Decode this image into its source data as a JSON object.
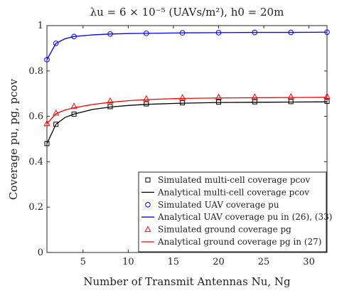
{
  "chart_data": {
    "type": "line",
    "title": "λu = 6 × 10⁻⁵ (UAVs/m²), h0 = 20m",
    "xlabel": "Number of Transmit Antennas Nu, Ng",
    "ylabel": "Coverage pu, pg, pcov",
    "xlim": [
      1,
      32
    ],
    "ylim": [
      0,
      1
    ],
    "xticks": [
      5,
      10,
      15,
      20,
      25,
      30
    ],
    "yticks": [
      0,
      0.2,
      0.4,
      0.6,
      0.8,
      1
    ],
    "xtick_labels": [
      "5",
      "10",
      "15",
      "20",
      "25",
      "30"
    ],
    "ytick_labels": [
      "0",
      "0.2",
      "0.4",
      "0.6",
      "0.8",
      "1"
    ],
    "grid": false,
    "legend_position": "bottom-right",
    "series": [
      {
        "name": "Simulated multi-cell coverage pcov",
        "kind": "markers",
        "marker": "square",
        "color": "#000000",
        "x": [
          1,
          2,
          4,
          8,
          12,
          16,
          20,
          24,
          28,
          32
        ],
        "y": [
          0.48,
          0.565,
          0.61,
          0.643,
          0.655,
          0.66,
          0.663,
          0.664,
          0.665,
          0.666
        ]
      },
      {
        "name": "Analytical multi-cell coverage pcov",
        "kind": "line",
        "color": "#000000",
        "x": [
          1,
          2,
          3,
          4,
          6,
          8,
          10,
          12,
          16,
          20,
          24,
          28,
          32
        ],
        "y": [
          0.48,
          0.565,
          0.595,
          0.61,
          0.63,
          0.641,
          0.648,
          0.653,
          0.658,
          0.661,
          0.662,
          0.663,
          0.664
        ]
      },
      {
        "name": "Simulated UAV coverage pu",
        "kind": "markers",
        "marker": "circle",
        "color": "#0000ff",
        "x": [
          1,
          2,
          4,
          8,
          12,
          16,
          20,
          24,
          28,
          32
        ],
        "y": [
          0.85,
          0.922,
          0.952,
          0.963,
          0.966,
          0.968,
          0.969,
          0.97,
          0.97,
          0.971
        ]
      },
      {
        "name": "Analytical UAV coverage pu in (26), (33)",
        "kind": "line",
        "color": "#0000ff",
        "x": [
          1,
          2,
          3,
          4,
          6,
          8,
          10,
          12,
          16,
          20,
          24,
          28,
          32
        ],
        "y": [
          0.85,
          0.922,
          0.942,
          0.952,
          0.959,
          0.963,
          0.965,
          0.966,
          0.968,
          0.969,
          0.97,
          0.97,
          0.971
        ]
      },
      {
        "name": "Simulated ground coverage pg",
        "kind": "markers",
        "marker": "triangle",
        "color": "#ff0000",
        "x": [
          1,
          2,
          4,
          8,
          12,
          16,
          20,
          24,
          28,
          32
        ],
        "y": [
          0.568,
          0.615,
          0.645,
          0.668,
          0.678,
          0.683,
          0.685,
          0.686,
          0.687,
          0.688
        ]
      },
      {
        "name": "Analytical ground coverage pg in (27)",
        "kind": "line",
        "color": "#ff0000",
        "x": [
          1,
          2,
          3,
          4,
          6,
          8,
          10,
          12,
          16,
          20,
          24,
          28,
          32
        ],
        "y": [
          0.568,
          0.612,
          0.628,
          0.638,
          0.652,
          0.662,
          0.669,
          0.674,
          0.679,
          0.681,
          0.682,
          0.683,
          0.684
        ]
      }
    ]
  }
}
